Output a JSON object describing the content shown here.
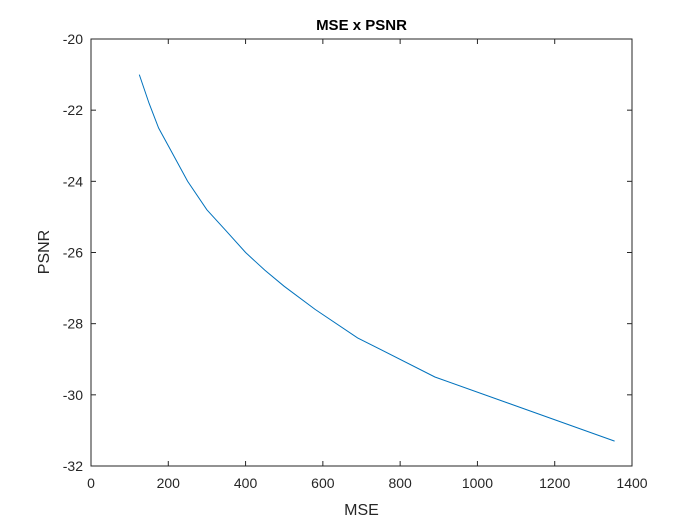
{
  "chart_data": {
    "type": "line",
    "title": "MSE x PSNR",
    "xlabel": "MSE",
    "ylabel": "PSNR",
    "xlim": [
      0,
      1400
    ],
    "ylim": [
      -32,
      -20
    ],
    "xticks": [
      0,
      200,
      400,
      600,
      800,
      1000,
      1200,
      1400
    ],
    "xtick_labels": [
      "0",
      "200",
      "400",
      "600",
      "800",
      "1000",
      "1200",
      "1400"
    ],
    "yticks": [
      -32,
      -30,
      -28,
      -26,
      -24,
      -22,
      -20
    ],
    "ytick_labels": [
      "-32",
      "-30",
      "-28",
      "-26",
      "-24",
      "-22",
      "-20"
    ],
    "grid": false,
    "series": [
      {
        "color": "#0072BD",
        "x": [
          125,
          150,
          175,
          200,
          250,
          300,
          350,
          400,
          450,
          500,
          580,
          690,
          890,
          1355
        ],
        "y": [
          -21.0,
          -21.8,
          -22.5,
          -23.0,
          -24.0,
          -24.8,
          -25.4,
          -26.0,
          -26.5,
          -26.95,
          -27.6,
          -28.4,
          -29.5,
          -31.3
        ]
      }
    ]
  }
}
